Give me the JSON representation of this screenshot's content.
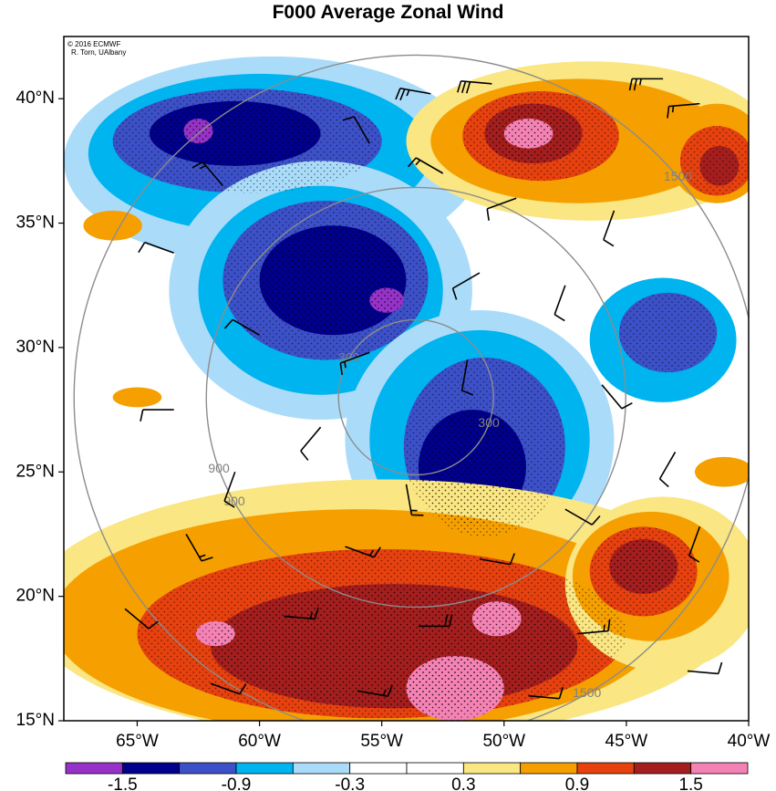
{
  "title": "F000 Average Zonal Wind",
  "credit": {
    "line1": "© 2016 ECMWF",
    "line2": "R. Torn, UAlbany"
  },
  "axes": {
    "lat_labels": [
      "40°N",
      "35°N",
      "30°N",
      "25°N",
      "20°N",
      "15°N"
    ],
    "lat_values": [
      40,
      35,
      30,
      25,
      20,
      15
    ],
    "lon_labels": [
      "65°W",
      "60°W",
      "55°W",
      "50°W",
      "45°W",
      "40°W"
    ],
    "lon_values": [
      -65,
      -60,
      -55,
      -50,
      -45,
      -40
    ],
    "lat_range": [
      15,
      42.5
    ],
    "lon_range": [
      -68,
      -40
    ]
  },
  "range_rings": {
    "center_lat": 28.0,
    "center_lon": -53.6,
    "rings": [
      {
        "label": "300"
      },
      {
        "label": "900"
      },
      {
        "label": "1500"
      }
    ]
  },
  "colorbar": {
    "tick_labels": [
      "-1.5",
      "-0.9",
      "-0.3",
      "0.3",
      "0.9",
      "1.5"
    ],
    "colors": [
      "#9632c8",
      "#00008c",
      "#3c50c8",
      "#00b4f0",
      "#aadcfa",
      "#ffffff",
      "#ffffff",
      "#fae682",
      "#f5a000",
      "#e6410f",
      "#a51e1e",
      "#f582b4"
    ]
  },
  "regions": [
    {
      "level": "#aadcfa",
      "lat": 37.5,
      "lon": -59.5,
      "rlat": 4.2,
      "rlon": 8.5
    },
    {
      "level": "#00b4f0",
      "lat": 37.8,
      "lon": -60.0,
      "rlat": 3.2,
      "rlon": 7.0
    },
    {
      "level": "#3c50c8",
      "lat": 38.3,
      "lon": -60.5,
      "rlat": 2.1,
      "rlon": 5.5
    },
    {
      "level": "#00008c",
      "lat": 38.6,
      "lon": -61.0,
      "rlat": 1.3,
      "rlon": 3.5
    },
    {
      "level": "#9632c8",
      "lat": 38.7,
      "lon": -62.5,
      "rlat": 0.5,
      "rlon": 0.6
    },
    {
      "level": "#aadcfa",
      "lat": 32.3,
      "lon": -57.5,
      "rlat": 5.2,
      "rlon": 6.2
    },
    {
      "level": "#00b4f0",
      "lat": 32.3,
      "lon": -57.5,
      "rlat": 4.2,
      "rlon": 5.0
    },
    {
      "level": "#3c50c8",
      "lat": 32.7,
      "lon": -57.3,
      "rlat": 3.2,
      "rlon": 4.2
    },
    {
      "level": "#00008c",
      "lat": 32.7,
      "lon": -57.0,
      "rlat": 2.2,
      "rlon": 3.0
    },
    {
      "level": "#9632c8",
      "lat": 31.9,
      "lon": -54.8,
      "rlat": 0.5,
      "rlon": 0.7
    },
    {
      "level": "#aadcfa",
      "lat": 26.3,
      "lon": -51.0,
      "rlat": 5.2,
      "rlon": 5.5
    },
    {
      "level": "#00b4f0",
      "lat": 26.3,
      "lon": -51.0,
      "rlat": 4.4,
      "rlon": 4.5
    },
    {
      "level": "#3c50c8",
      "lat": 26.0,
      "lon": -50.8,
      "rlat": 3.6,
      "rlon": 3.3
    },
    {
      "level": "#00008c",
      "lat": 25.2,
      "lon": -51.3,
      "rlat": 2.3,
      "rlon": 2.2
    },
    {
      "level": "#9632c8",
      "lat": 23.8,
      "lon": -50.8,
      "rlat": 0.6,
      "rlon": 0.6
    },
    {
      "level": "#00b4f0",
      "lat": 30.3,
      "lon": -43.5,
      "rlat": 2.5,
      "rlon": 3.0
    },
    {
      "level": "#3c50c8",
      "lat": 30.6,
      "lon": -43.3,
      "rlat": 1.6,
      "rlon": 2.0
    },
    {
      "level": "#fae682",
      "lat": 38.3,
      "lon": -46.5,
      "rlat": 3.2,
      "rlon": 7.5
    },
    {
      "level": "#f5a000",
      "lat": 38.3,
      "lon": -47.0,
      "rlat": 2.5,
      "rlon": 6.0
    },
    {
      "level": "#e6410f",
      "lat": 38.5,
      "lon": -48.5,
      "rlat": 1.8,
      "rlon": 3.2
    },
    {
      "level": "#a51e1e",
      "lat": 38.6,
      "lon": -48.8,
      "rlat": 1.2,
      "rlon": 2.0
    },
    {
      "level": "#f582b4",
      "lat": 38.6,
      "lon": -49.0,
      "rlat": 0.6,
      "rlon": 1.0
    },
    {
      "level": "#f5a000",
      "lat": 37.8,
      "lon": -41.3,
      "rlat": 2.0,
      "rlon": 2.0
    },
    {
      "level": "#e6410f",
      "lat": 37.5,
      "lon": -41.3,
      "rlat": 1.4,
      "rlon": 1.5
    },
    {
      "level": "#a51e1e",
      "lat": 37.3,
      "lon": -41.2,
      "rlat": 0.8,
      "rlon": 0.8
    },
    {
      "level": "#fae682",
      "lat": 19.5,
      "lon": -55.0,
      "rlat": 5.2,
      "rlon": 14.5
    },
    {
      "level": "#f5a000",
      "lat": 19.0,
      "lon": -56.0,
      "rlat": 4.5,
      "rlon": 12.5
    },
    {
      "level": "#e6410f",
      "lat": 18.5,
      "lon": -55.0,
      "rlat": 3.4,
      "rlon": 10.0
    },
    {
      "level": "#a51e1e",
      "lat": 18.0,
      "lon": -54.5,
      "rlat": 2.5,
      "rlon": 7.5
    },
    {
      "level": "#f582b4",
      "lat": 16.3,
      "lon": -52.0,
      "rlat": 1.3,
      "rlon": 2.0
    },
    {
      "level": "#f582b4",
      "lat": 19.1,
      "lon": -50.3,
      "rlat": 0.7,
      "rlon": 1.0
    },
    {
      "level": "#f582b4",
      "lat": 18.5,
      "lon": -61.8,
      "rlat": 0.5,
      "rlon": 0.8
    },
    {
      "level": "#fae682",
      "lat": 20.5,
      "lon": -43.5,
      "rlat": 3.5,
      "rlon": 4.0
    },
    {
      "level": "#f5a000",
      "lat": 20.8,
      "lon": -44.0,
      "rlat": 2.6,
      "rlon": 3.2
    },
    {
      "level": "#e6410f",
      "lat": 21.0,
      "lon": -44.3,
      "rlat": 1.8,
      "rlon": 2.2
    },
    {
      "level": "#a51e1e",
      "lat": 21.2,
      "lon": -44.3,
      "rlat": 1.1,
      "rlon": 1.4
    },
    {
      "level": "#f5a000",
      "lat": 34.9,
      "lon": -66.0,
      "rlat": 0.6,
      "rlon": 1.2
    },
    {
      "level": "#f5a000",
      "lat": 28.0,
      "lon": -65.0,
      "rlat": 0.4,
      "rlon": 1.0
    },
    {
      "level": "#f5a000",
      "lat": 25.0,
      "lon": -41.0,
      "rlat": 0.6,
      "rlon": 1.2
    }
  ],
  "barbs": [
    {
      "lat": 40.2,
      "lon": -53.0,
      "dir": 280,
      "speed": 25
    },
    {
      "lat": 40.6,
      "lon": -50.5,
      "dir": 275,
      "speed": 30
    },
    {
      "lat": 40.8,
      "lon": -43.5,
      "dir": 270,
      "speed": 25
    },
    {
      "lat": 39.8,
      "lon": -42.0,
      "dir": 265,
      "speed": 15
    },
    {
      "lat": 38.2,
      "lon": -55.5,
      "dir": 330,
      "speed": 10
    },
    {
      "lat": 37.0,
      "lon": -52.5,
      "dir": 300,
      "speed": 15
    },
    {
      "lat": 36.0,
      "lon": -49.5,
      "dir": 250,
      "speed": 10
    },
    {
      "lat": 35.5,
      "lon": -45.5,
      "dir": 200,
      "speed": 10
    },
    {
      "lat": 36.5,
      "lon": -61.5,
      "dir": 320,
      "speed": 15
    },
    {
      "lat": 33.8,
      "lon": -63.5,
      "dir": 290,
      "speed": 10
    },
    {
      "lat": 33.0,
      "lon": -51.0,
      "dir": 240,
      "speed": 10
    },
    {
      "lat": 32.5,
      "lon": -47.5,
      "dir": 200,
      "speed": 10
    },
    {
      "lat": 30.5,
      "lon": -60.0,
      "dir": 300,
      "speed": 10
    },
    {
      "lat": 29.8,
      "lon": -55.5,
      "dir": 250,
      "speed": 15
    },
    {
      "lat": 29.5,
      "lon": -51.5,
      "dir": 190,
      "speed": 10
    },
    {
      "lat": 28.5,
      "lon": -46.0,
      "dir": 140,
      "speed": 10
    },
    {
      "lat": 27.5,
      "lon": -63.5,
      "dir": 270,
      "speed": 10
    },
    {
      "lat": 26.8,
      "lon": -57.5,
      "dir": 220,
      "speed": 10
    },
    {
      "lat": 25.0,
      "lon": -61.0,
      "dir": 200,
      "speed": 10
    },
    {
      "lat": 24.5,
      "lon": -54.0,
      "dir": 170,
      "speed": 15
    },
    {
      "lat": 23.5,
      "lon": -47.5,
      "dir": 120,
      "speed": 10
    },
    {
      "lat": 22.5,
      "lon": -63.0,
      "dir": 150,
      "speed": 15
    },
    {
      "lat": 22.0,
      "lon": -56.5,
      "dir": 110,
      "speed": 15
    },
    {
      "lat": 21.5,
      "lon": -51.0,
      "dir": 100,
      "speed": 10
    },
    {
      "lat": 19.5,
      "lon": -65.5,
      "dir": 130,
      "speed": 10
    },
    {
      "lat": 19.2,
      "lon": -59.0,
      "dir": 95,
      "speed": 15
    },
    {
      "lat": 18.8,
      "lon": -53.5,
      "dir": 90,
      "speed": 20
    },
    {
      "lat": 18.5,
      "lon": -47.0,
      "dir": 85,
      "speed": 15
    },
    {
      "lat": 17.0,
      "lon": -42.5,
      "dir": 95,
      "speed": 10
    },
    {
      "lat": 16.5,
      "lon": -62.0,
      "dir": 110,
      "speed": 10
    },
    {
      "lat": 16.2,
      "lon": -56.0,
      "dir": 100,
      "speed": 15
    },
    {
      "lat": 16.0,
      "lon": -49.0,
      "dir": 95,
      "speed": 10
    },
    {
      "lat": 22.8,
      "lon": -42.0,
      "dir": 200,
      "speed": 10
    },
    {
      "lat": 25.8,
      "lon": -43.0,
      "dir": 210,
      "speed": 10
    }
  ]
}
